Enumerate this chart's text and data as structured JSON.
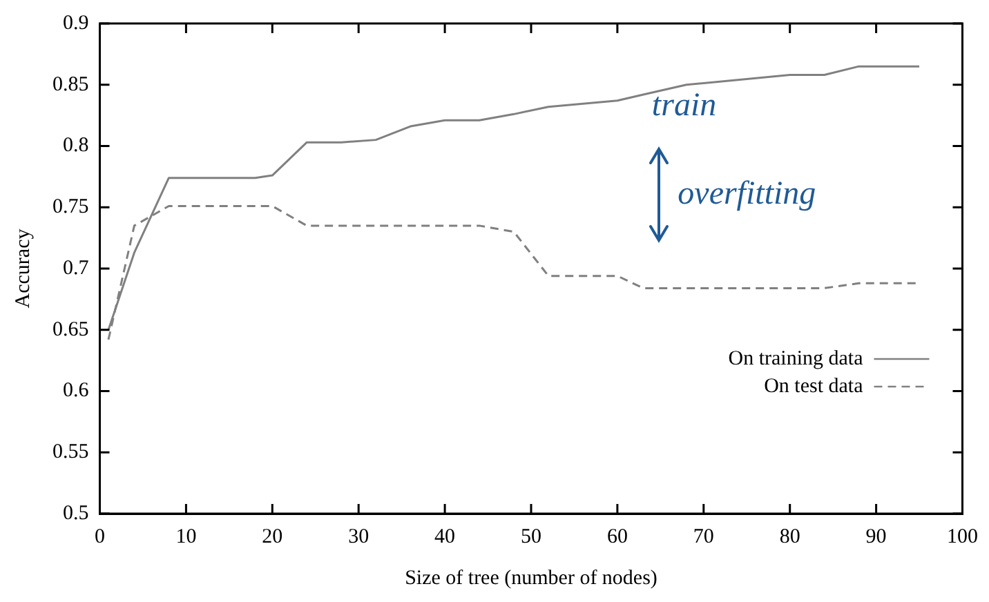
{
  "chart_data": {
    "type": "line",
    "xlabel": "Size of tree (number of nodes)",
    "ylabel": "Accuracy",
    "xlim": [
      0,
      100
    ],
    "xticks": [
      0,
      10,
      20,
      30,
      40,
      50,
      60,
      70,
      80,
      90,
      100
    ],
    "ylim": [
      0.5,
      0.9
    ],
    "yticks": [
      0.5,
      0.55,
      0.6,
      0.65,
      0.7,
      0.75,
      0.8,
      0.85,
      0.9
    ],
    "grid": false,
    "legend": "bottom right",
    "marker": "none",
    "series": [
      {
        "name": "On training data",
        "color": "#808080",
        "line_style": "solid",
        "x": [
          1,
          4,
          8,
          18,
          20,
          24,
          28,
          32,
          36,
          40,
          44,
          48,
          52,
          60,
          63,
          68,
          80,
          84,
          88,
          95
        ],
        "values": [
          0.65,
          0.713,
          0.774,
          0.774,
          0.776,
          0.803,
          0.803,
          0.805,
          0.816,
          0.821,
          0.821,
          0.826,
          0.832,
          0.837,
          0.842,
          0.85,
          0.858,
          0.858,
          0.865,
          0.865
        ]
      },
      {
        "name": "On test data",
        "color": "#808080",
        "line_style": "dashed",
        "x": [
          1,
          4,
          8,
          20,
          24,
          44,
          48,
          52,
          60,
          63,
          84,
          88,
          95
        ],
        "values": [
          0.642,
          0.735,
          0.751,
          0.751,
          0.735,
          0.735,
          0.73,
          0.694,
          0.694,
          0.684,
          0.684,
          0.688,
          0.688
        ]
      }
    ],
    "annotations": [
      "train",
      "overfitting"
    ]
  }
}
